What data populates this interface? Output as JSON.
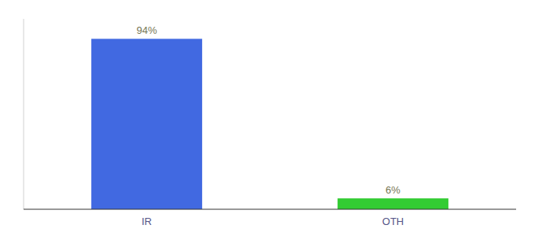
{
  "chart_data": {
    "type": "bar",
    "categories": [
      "IR",
      "OTH"
    ],
    "values": [
      94,
      6
    ],
    "value_labels": [
      "94%",
      "6%"
    ],
    "colors": [
      "#4169e1",
      "#33cc33"
    ],
    "ylim": [
      0,
      105
    ],
    "tick_labels": "x",
    "data_labels": true,
    "grid": false
  }
}
